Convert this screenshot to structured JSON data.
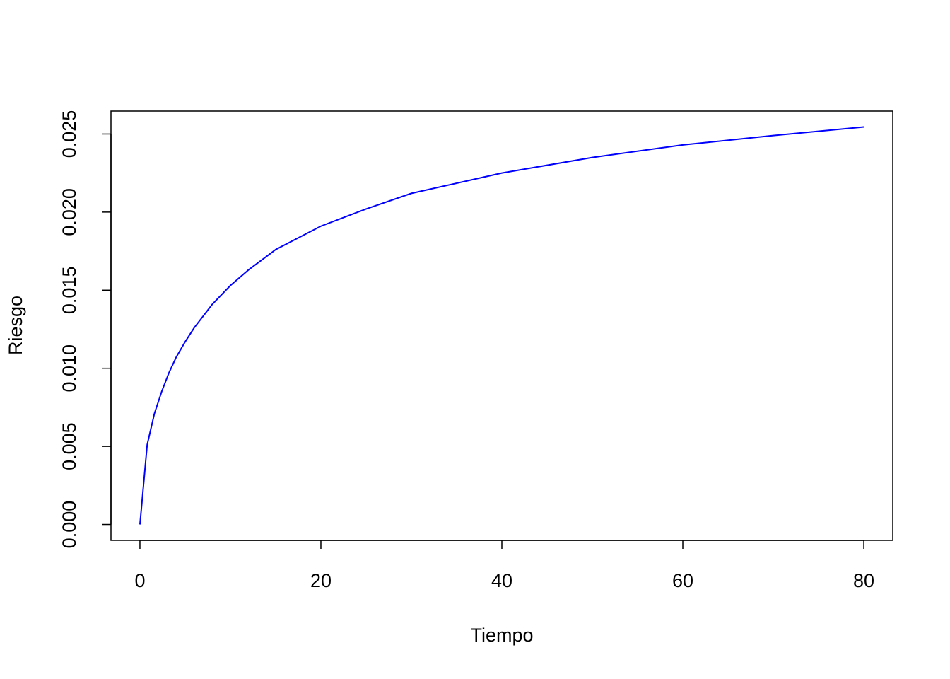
{
  "chart_data": {
    "type": "line",
    "x_label": "Tiempo",
    "y_label": "Riesgo",
    "x": [
      0,
      0.8,
      1.6,
      2.4,
      3.2,
      4,
      5,
      6,
      8,
      10,
      12,
      15,
      20,
      25,
      30,
      40,
      50,
      60,
      70,
      80
    ],
    "series": [
      {
        "color": "#0000ff",
        "values": [
          0,
          0.0051,
          0.0071,
          0.0085,
          0.0097,
          0.0107,
          0.0117,
          0.0126,
          0.0141,
          0.0153,
          0.0163,
          0.0176,
          0.0191,
          0.0202,
          0.0212,
          0.0225,
          0.0235,
          0.0243,
          0.0249,
          0.02545
        ]
      }
    ],
    "xlim": [
      -3.2,
      83.2
    ],
    "ylim": [
      -0.001018,
      0.02647
    ],
    "xticks": [
      0,
      20,
      40,
      60,
      80
    ],
    "yticks": [
      {
        "value": 0,
        "label": "0.000"
      },
      {
        "value": 0.005,
        "label": "0.005"
      },
      {
        "value": 0.01,
        "label": "0.010"
      },
      {
        "value": 0.015,
        "label": "0.015"
      },
      {
        "value": 0.02,
        "label": "0.020"
      },
      {
        "value": 0.025,
        "label": "0.025"
      }
    ],
    "grid": false
  }
}
